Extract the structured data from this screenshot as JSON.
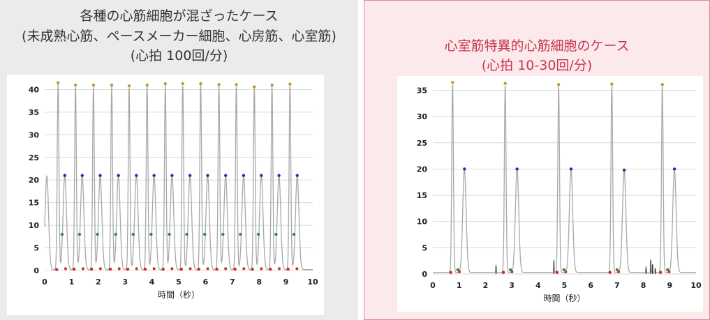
{
  "colors": {
    "trace": "#a8a8a8",
    "grid": "#d9d9d9",
    "peak": "#c8962e",
    "mid": "#1f2fa6",
    "trough": "#2e8b4a",
    "base": "#d02a2a",
    "spike": "#222222"
  },
  "left": {
    "title_lines": [
      "各種の心筋細胞が混ざったケース",
      "(未成熟心筋、ペースメーカー細胞、心房筋、心室筋)",
      "(心拍 100回/分)"
    ]
  },
  "right": {
    "title_lines": [
      "心室筋特異的心筋細胞のケース",
      "(心拍 10-30回/分)"
    ]
  },
  "chart_data": [
    {
      "type": "line",
      "xlabel": "時間（秒）",
      "xlim": [
        0,
        10
      ],
      "ylim": [
        0,
        41
      ],
      "x_ticks": [
        0,
        1,
        2,
        3,
        4,
        5,
        6,
        7,
        8,
        9,
        10
      ],
      "y_ticks": [
        0,
        5,
        10,
        15,
        20,
        25,
        30,
        35,
        40
      ],
      "grid": "horizontal",
      "beats": [
        {
          "peak": [
            0.5,
            41.5
          ],
          "base": [
            0.45,
            0.2
          ],
          "trough": [
            0.65,
            8
          ],
          "mid": [
            0.75,
            21
          ]
        },
        {
          "peak": [
            1.15,
            41
          ],
          "base": [
            1.1,
            0.3
          ],
          "trough": [
            1.3,
            8
          ],
          "mid": [
            1.4,
            21
          ]
        },
        {
          "peak": [
            1.82,
            41
          ],
          "base": [
            1.75,
            0.3
          ],
          "trough": [
            1.97,
            8
          ],
          "mid": [
            2.07,
            21
          ]
        },
        {
          "peak": [
            2.5,
            41
          ],
          "base": [
            2.45,
            0.3
          ],
          "trough": [
            2.65,
            8
          ],
          "mid": [
            2.75,
            21
          ]
        },
        {
          "peak": [
            3.15,
            40.8
          ],
          "base": [
            3.1,
            0.3
          ],
          "trough": [
            3.3,
            8
          ],
          "mid": [
            3.42,
            21
          ]
        },
        {
          "peak": [
            3.82,
            41
          ],
          "base": [
            3.75,
            0.3
          ],
          "trough": [
            3.97,
            8
          ],
          "mid": [
            4.08,
            21
          ]
        },
        {
          "peak": [
            4.5,
            41.3
          ],
          "base": [
            4.42,
            0.3
          ],
          "trough": [
            4.65,
            8
          ],
          "mid": [
            4.75,
            21
          ]
        },
        {
          "peak": [
            5.15,
            41.3
          ],
          "base": [
            5.1,
            0.3
          ],
          "trough": [
            5.3,
            8
          ],
          "mid": [
            5.42,
            21
          ]
        },
        {
          "peak": [
            5.82,
            41.3
          ],
          "base": [
            5.75,
            0.3
          ],
          "trough": [
            5.97,
            8
          ],
          "mid": [
            6.08,
            21
          ]
        },
        {
          "peak": [
            6.5,
            41.1
          ],
          "base": [
            6.42,
            0.3
          ],
          "trough": [
            6.65,
            8
          ],
          "mid": [
            6.75,
            21
          ]
        },
        {
          "peak": [
            7.15,
            41.1
          ],
          "base": [
            7.1,
            0.3
          ],
          "trough": [
            7.3,
            8
          ],
          "mid": [
            7.42,
            21
          ]
        },
        {
          "peak": [
            7.82,
            40.6
          ],
          "base": [
            7.75,
            0.3
          ],
          "trough": [
            7.97,
            8
          ],
          "mid": [
            8.08,
            21
          ]
        },
        {
          "peak": [
            8.48,
            41
          ],
          "base": [
            8.42,
            0.3
          ],
          "trough": [
            8.63,
            8
          ],
          "mid": [
            8.74,
            21
          ]
        },
        {
          "peak": [
            9.15,
            41.2
          ],
          "base": [
            9.08,
            0.3
          ],
          "trough": [
            9.3,
            8
          ],
          "mid": [
            9.42,
            21
          ]
        }
      ],
      "first_hump": [
        0.08,
        21
      ]
    },
    {
      "type": "line",
      "xlabel": "時間（秒）",
      "xlim": [
        0,
        10
      ],
      "ylim": [
        0,
        36
      ],
      "x_ticks": [
        0,
        1,
        2,
        3,
        4,
        5,
        6,
        7,
        8,
        9,
        10
      ],
      "y_ticks": [
        0,
        5,
        10,
        15,
        20,
        25,
        30,
        35
      ],
      "grid": "horizontal",
      "beats": [
        {
          "peak": [
            0.75,
            36.5
          ],
          "base": [
            0.68,
            0.3
          ],
          "trough": [
            0.95,
            0.8
          ],
          "mid": [
            1.2,
            20
          ]
        },
        {
          "peak": [
            2.75,
            36.3
          ],
          "base": [
            2.68,
            0.3
          ],
          "trough": [
            2.95,
            0.8
          ],
          "mid": [
            3.2,
            20
          ]
        },
        {
          "peak": [
            4.78,
            36.1
          ],
          "base": [
            4.72,
            0.3
          ],
          "trough": [
            4.98,
            0.8
          ],
          "mid": [
            5.25,
            20
          ]
        },
        {
          "peak": [
            6.8,
            36.2
          ],
          "base": [
            6.73,
            0.3
          ],
          "trough": [
            7.0,
            0.8
          ],
          "mid": [
            7.27,
            19.8
          ]
        },
        {
          "peak": [
            8.72,
            36.1
          ],
          "base": [
            8.65,
            0.3
          ],
          "trough": [
            8.92,
            0.8
          ],
          "mid": [
            9.18,
            20
          ]
        }
      ],
      "spikes": [
        [
          2.4,
          1.5
        ],
        [
          4.6,
          2.5
        ],
        [
          8.1,
          1.2
        ],
        [
          8.28,
          2.6
        ],
        [
          8.35,
          1.8
        ],
        [
          8.45,
          1.0
        ]
      ]
    }
  ]
}
